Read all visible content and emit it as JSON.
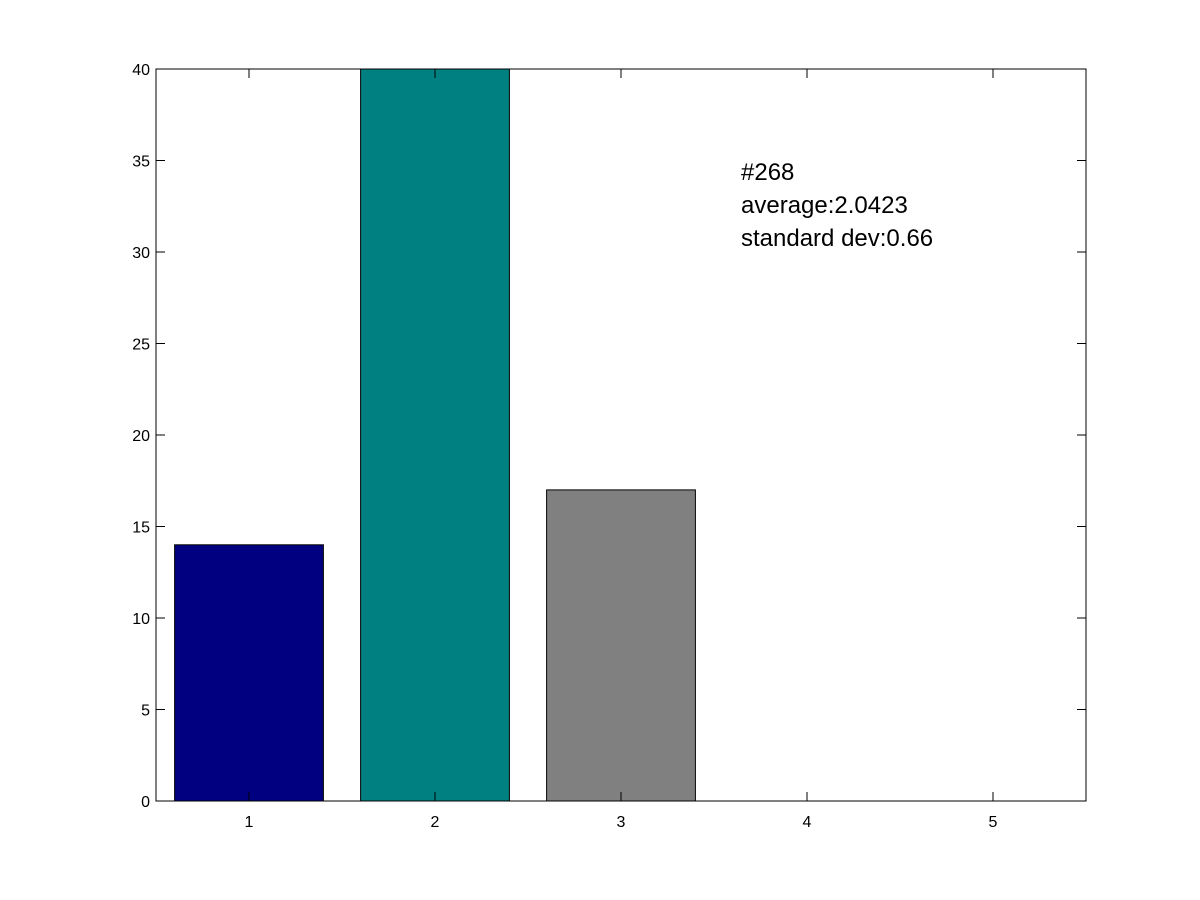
{
  "chart_data": {
    "type": "bar",
    "categories": [
      "1",
      "2",
      "3",
      "4",
      "5"
    ],
    "values": [
      14,
      40,
      17,
      0,
      0
    ],
    "colors": [
      "#000080",
      "#008080",
      "#808080",
      "#808080",
      "#808080"
    ],
    "ylim": [
      0,
      40
    ],
    "yticks": [
      0,
      5,
      10,
      15,
      20,
      25,
      30,
      35,
      40
    ],
    "xlim": [
      0.5,
      5.5
    ],
    "grid": false,
    "annotations": [
      "#268",
      "average:2.0423",
      "standard dev:0.66"
    ]
  }
}
